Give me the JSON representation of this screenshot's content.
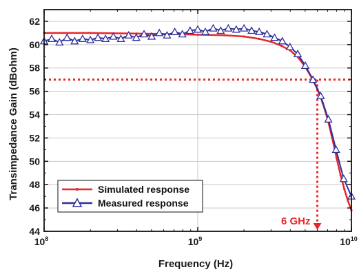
{
  "chart_data": {
    "type": "line",
    "title": "",
    "xlabel": "Frequency (Hz)",
    "ylabel": "Transimpedance Gain (dBohm)",
    "xscale": "log",
    "xlim": [
      100000000,
      10000000000
    ],
    "ylim": [
      44,
      63
    ],
    "x_ticks": [
      {
        "value": 100000000,
        "base": "10",
        "exp": "8"
      },
      {
        "value": 1000000000,
        "base": "10",
        "exp": "9"
      },
      {
        "value": 10000000000,
        "base": "10",
        "exp": "10"
      }
    ],
    "y_ticks": [
      44,
      46,
      48,
      50,
      52,
      54,
      56,
      58,
      60,
      62
    ],
    "grid": true,
    "legend_placement": "bottom-left",
    "series": [
      {
        "name": "Simulated response",
        "color": "#e8262b",
        "marker": "dot",
        "points": [
          [
            100000000,
            61.0
          ],
          [
            200000000,
            61.0
          ],
          [
            400000000,
            60.95
          ],
          [
            700000000,
            60.9
          ],
          [
            1000000000,
            60.85
          ],
          [
            1500000000,
            60.8
          ],
          [
            2000000000,
            60.7
          ],
          [
            2500000000,
            60.5
          ],
          [
            3000000000,
            60.25
          ],
          [
            3500000000,
            59.9
          ],
          [
            4000000000,
            59.5
          ],
          [
            4500000000,
            58.9
          ],
          [
            5000000000,
            58.1
          ],
          [
            5500000000,
            57.2
          ],
          [
            6000000000,
            56.2
          ],
          [
            6500000000,
            55.0
          ],
          [
            7000000000,
            53.6
          ],
          [
            7500000000,
            52.0
          ],
          [
            8000000000,
            50.3
          ],
          [
            8500000000,
            48.8
          ],
          [
            9000000000,
            47.6
          ],
          [
            9500000000,
            46.6
          ],
          [
            10000000000,
            45.8
          ]
        ]
      },
      {
        "name": "Measured response",
        "color": "#2b2f9c",
        "marker": "triangle",
        "points": [
          [
            100000000,
            60.3
          ],
          [
            112000000,
            60.5
          ],
          [
            126000000,
            60.2
          ],
          [
            141000000,
            60.6
          ],
          [
            158000000,
            60.3
          ],
          [
            178000000,
            60.5
          ],
          [
            200000000,
            60.4
          ],
          [
            224000000,
            60.6
          ],
          [
            251000000,
            60.5
          ],
          [
            282000000,
            60.7
          ],
          [
            316000000,
            60.5
          ],
          [
            355000000,
            60.8
          ],
          [
            398000000,
            60.6
          ],
          [
            447000000,
            60.9
          ],
          [
            501000000,
            60.7
          ],
          [
            562000000,
            61.0
          ],
          [
            631000000,
            60.8
          ],
          [
            708000000,
            61.1
          ],
          [
            794000000,
            60.9
          ],
          [
            891000000,
            61.2
          ],
          [
            1000000000,
            61.3
          ],
          [
            1120000000,
            61.1
          ],
          [
            1260000000,
            61.4
          ],
          [
            1410000000,
            61.2
          ],
          [
            1580000000,
            61.4
          ],
          [
            1780000000,
            61.3
          ],
          [
            2000000000,
            61.4
          ],
          [
            2240000000,
            61.2
          ],
          [
            2510000000,
            61.1
          ],
          [
            2820000000,
            60.9
          ],
          [
            3160000000,
            60.6
          ],
          [
            3550000000,
            60.3
          ],
          [
            3980000000,
            59.8
          ],
          [
            4470000000,
            59.2
          ],
          [
            5010000000,
            58.2
          ],
          [
            5620000000,
            57.0
          ],
          [
            6310000000,
            55.6
          ],
          [
            7080000000,
            53.6
          ],
          [
            7940000000,
            51.0
          ],
          [
            8910000000,
            48.5
          ],
          [
            10000000000,
            47.0
          ]
        ]
      }
    ],
    "reference_line": {
      "y": 57,
      "x": 6000000000,
      "color": "#e8262b"
    },
    "annotations": [
      {
        "text": "6 GHz",
        "x": 6000000000,
        "y": 44,
        "color": "#e8262b"
      }
    ]
  }
}
